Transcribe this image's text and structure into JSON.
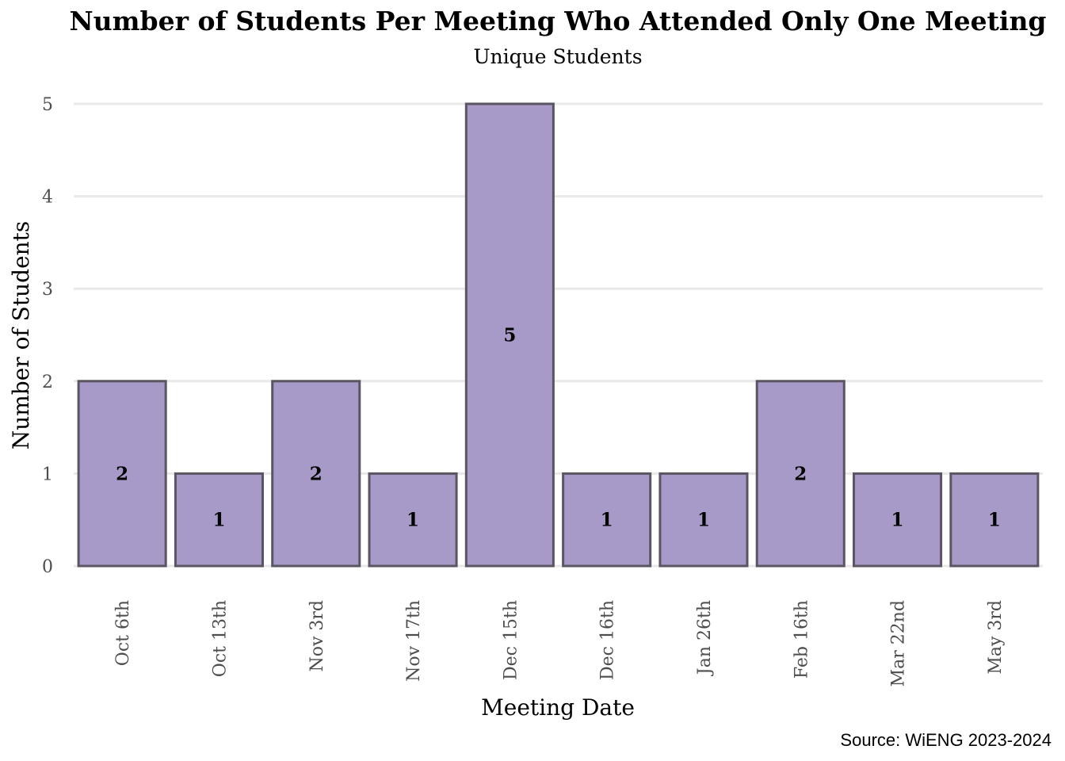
{
  "chart_data": {
    "type": "bar",
    "title": "Number of Students Per Meeting Who Attended Only One Meeting",
    "subtitle": "Unique Students",
    "xlabel": "Meeting Date",
    "ylabel": "Number of Students",
    "caption": "Source: WiENG 2023-2024",
    "categories": [
      "Oct 6th",
      "Oct 13th",
      "Nov 3rd",
      "Nov 17th",
      "Dec 15th",
      "Dec 16th",
      "Jan 26th",
      "Feb 16th",
      "Mar 22nd",
      "May 3rd"
    ],
    "values": [
      2,
      1,
      2,
      1,
      5,
      1,
      1,
      2,
      1,
      1
    ],
    "ylim": [
      0,
      5
    ],
    "yticks": [
      0,
      1,
      2,
      3,
      4,
      5
    ],
    "grid": true,
    "legend": "none",
    "data_labels": true,
    "colors": {
      "bar_fill": "#a79ac8",
      "bar_outline": "#5a5560",
      "grid": "#e8e8e8",
      "tick_text": "#4d4d4d"
    }
  }
}
